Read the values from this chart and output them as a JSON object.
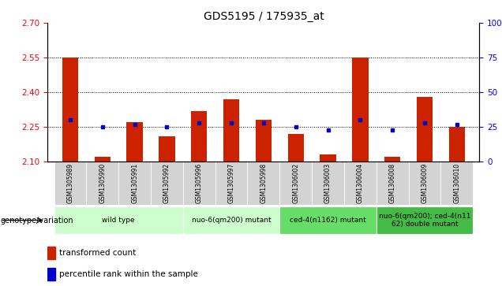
{
  "title": "GDS5195 / 175935_at",
  "samples": [
    "GSM1305989",
    "GSM1305990",
    "GSM1305991",
    "GSM1305992",
    "GSM1305996",
    "GSM1305997",
    "GSM1305998",
    "GSM1306002",
    "GSM1306003",
    "GSM1306004",
    "GSM1306008",
    "GSM1306009",
    "GSM1306010"
  ],
  "transformed_count": [
    2.55,
    2.12,
    2.27,
    2.21,
    2.32,
    2.37,
    2.28,
    2.22,
    2.13,
    2.55,
    2.12,
    2.38,
    2.25
  ],
  "percentile_rank": [
    30,
    25,
    27,
    25,
    28,
    28,
    28,
    25,
    23,
    30,
    23,
    28,
    27
  ],
  "ylim_left": [
    2.1,
    2.7
  ],
  "ylim_right": [
    0,
    100
  ],
  "yticks_left": [
    2.1,
    2.25,
    2.4,
    2.55,
    2.7
  ],
  "yticks_right": [
    0,
    25,
    50,
    75,
    100
  ],
  "hlines": [
    2.25,
    2.4,
    2.55
  ],
  "bar_color": "#cc2200",
  "dot_color": "#0000cc",
  "group_ranges": [
    {
      "start": 0,
      "end": 3,
      "label": "wild type",
      "color": "#ccffcc"
    },
    {
      "start": 4,
      "end": 6,
      "label": "nuo-6(qm200) mutant",
      "color": "#ccffcc"
    },
    {
      "start": 7,
      "end": 9,
      "label": "ced-4(n1162) mutant",
      "color": "#66dd66"
    },
    {
      "start": 10,
      "end": 12,
      "label": "nuo-6(qm200); ced-4(n11\n62) double mutant",
      "color": "#44bb44"
    }
  ],
  "xlabel_genotype": "genotype/variation",
  "background_color": "#ffffff"
}
